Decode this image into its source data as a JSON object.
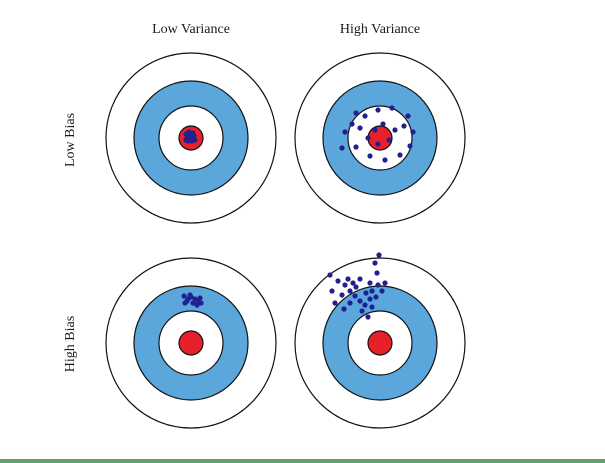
{
  "column_headers": {
    "low_variance": "Low Variance",
    "high_variance": "High Variance"
  },
  "row_headers": {
    "low_bias": "Low Bias",
    "high_bias": "High Bias"
  },
  "colors": {
    "ring_white": "#ffffff",
    "ring_blue": "#5ba7dc",
    "bullseye": "#e8202a",
    "dots": "#22208f",
    "outline": "#111111"
  },
  "targets": [
    {
      "name": "low-bias-low-variance",
      "dots": [
        [
          -5,
          -4
        ],
        [
          -2,
          -6
        ],
        [
          2,
          -5
        ],
        [
          -4,
          0
        ],
        [
          0,
          -1
        ],
        [
          3,
          -2
        ],
        [
          -3,
          3
        ],
        [
          1,
          3
        ],
        [
          4,
          2
        ],
        [
          -1,
          -3
        ],
        [
          2,
          0
        ],
        [
          -5,
          2
        ]
      ]
    },
    {
      "name": "low-bias-high-variance",
      "dots": [
        [
          -24,
          -25
        ],
        [
          -15,
          -22
        ],
        [
          -2,
          -28
        ],
        [
          12,
          -30
        ],
        [
          28,
          -22
        ],
        [
          33,
          -6
        ],
        [
          30,
          8
        ],
        [
          20,
          17
        ],
        [
          5,
          22
        ],
        [
          -10,
          18
        ],
        [
          -24,
          9
        ],
        [
          -38,
          10
        ],
        [
          -35,
          -6
        ],
        [
          -20,
          -10
        ],
        [
          -5,
          -8
        ],
        [
          3,
          -14
        ],
        [
          15,
          -8
        ],
        [
          9,
          2
        ],
        [
          -12,
          0
        ],
        [
          -2,
          6
        ],
        [
          24,
          -12
        ],
        [
          -28,
          -14
        ]
      ]
    },
    {
      "name": "high-bias-low-variance",
      "dots": [
        [
          -7,
          -47
        ],
        [
          -3,
          -44
        ],
        [
          0,
          -46
        ],
        [
          4,
          -44
        ],
        [
          7,
          -42
        ],
        [
          10,
          -40
        ],
        [
          2,
          -40
        ],
        [
          -4,
          -42
        ],
        [
          6,
          -38
        ],
        [
          -1,
          -48
        ],
        [
          9,
          -45
        ],
        [
          -6,
          -40
        ]
      ]
    },
    {
      "name": "high-bias-high-variance",
      "dots": [
        [
          -50,
          -68
        ],
        [
          -42,
          -62
        ],
        [
          -35,
          -58
        ],
        [
          -30,
          -52
        ],
        [
          -25,
          -47
        ],
        [
          -20,
          -42
        ],
        [
          -15,
          -38
        ],
        [
          -8,
          -52
        ],
        [
          -2,
          -58
        ],
        [
          5,
          -60
        ],
        [
          -4,
          -46
        ],
        [
          -10,
          -44
        ],
        [
          -14,
          -50
        ],
        [
          -24,
          -56
        ],
        [
          -32,
          -64
        ],
        [
          -20,
          -64
        ],
        [
          -45,
          -40
        ],
        [
          -30,
          -40
        ],
        [
          -38,
          -48
        ],
        [
          -18,
          -32
        ],
        [
          -8,
          -36
        ],
        [
          -3,
          -70
        ],
        [
          -10,
          -60
        ],
        [
          -48,
          -52
        ],
        [
          -12,
          -26
        ],
        [
          -5,
          -80
        ],
        [
          -1,
          -88
        ],
        [
          2,
          -52
        ],
        [
          -36,
          -34
        ],
        [
          -27,
          -60
        ]
      ]
    }
  ]
}
